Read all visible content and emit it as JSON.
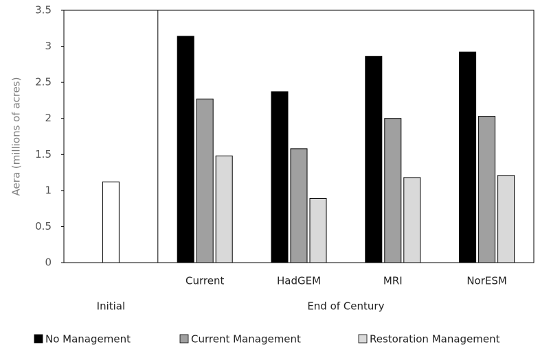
{
  "chart_data": {
    "type": "bar",
    "y_label": "Aera (millions of acres)",
    "categories": [
      null,
      "Current",
      "HadGEM",
      "MRI",
      "NorESM"
    ],
    "group_labels": [
      {
        "label": "Initial",
        "span": 1
      },
      {
        "label": "End of Century",
        "span": 4
      }
    ],
    "initial": {
      "color": "#ffffff",
      "values": [
        1.12,
        null,
        null,
        null,
        null
      ]
    },
    "series": [
      {
        "name": "No Management",
        "color": "#000000",
        "values": [
          null,
          3.14,
          2.37,
          2.86,
          2.92
        ]
      },
      {
        "name": "Current Management",
        "color": "#a0a0a0",
        "values": [
          null,
          2.27,
          1.58,
          2.0,
          2.03
        ]
      },
      {
        "name": "Restoration Management",
        "color": "#d9d9d9",
        "values": [
          null,
          1.48,
          0.89,
          1.18,
          1.21
        ]
      }
    ],
    "ylim": [
      0,
      3.5
    ],
    "yticks": [
      0,
      0.5,
      1,
      1.5,
      2,
      2.5,
      3,
      3.5
    ],
    "grid": false,
    "legend": "bottom"
  }
}
